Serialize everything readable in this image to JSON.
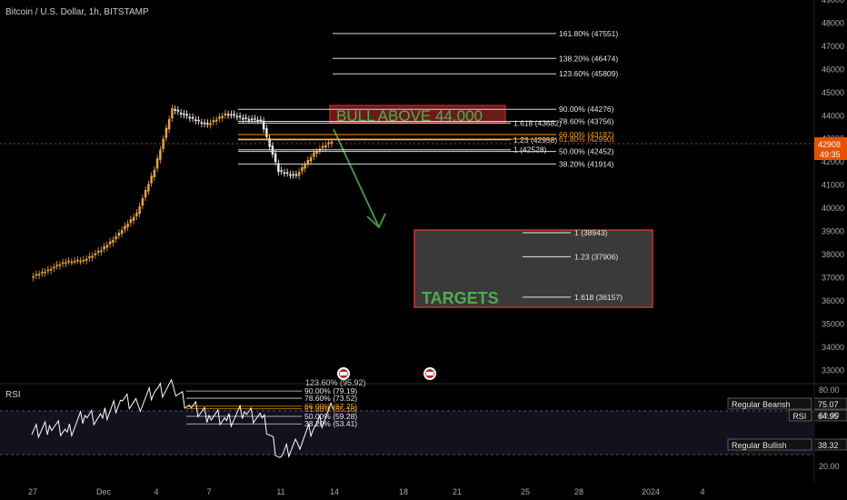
{
  "header": {
    "symbol_title": "Bitcoin / U.S. Dollar, 1h, BITSTAMP"
  },
  "colors": {
    "background": "#000000",
    "candle": "#f0a830",
    "candle_alt": "#ffffff",
    "fib_line": "#d8d8d8",
    "fib_orange": "#f39c12",
    "bull_text": "#4caf50",
    "bull_box": "#b71c1c",
    "arrow": "#43a047",
    "targets_box": "#3a3a3a",
    "targets_border": "#d32f2f",
    "rsi_line": "#ffffff",
    "rsi_band": "#1a1a2e",
    "price_tag": "#e65100"
  },
  "chart_data": [
    {
      "type": "candlestick",
      "title": "Bitcoin / U.S. Dollar, 1h, BITSTAMP",
      "ylim": [
        32500,
        49000
      ],
      "y_ticks": [
        33000,
        34000,
        35000,
        36000,
        37000,
        38000,
        39000,
        40000,
        41000,
        42000,
        43000,
        44000,
        45000,
        46000,
        47000,
        48000,
        49000
      ],
      "x_ticks": [
        "27",
        "Dec",
        "4",
        "7",
        "11",
        "14",
        "18",
        "21",
        "25",
        "28",
        "2024",
        "4"
      ],
      "price_series": [
        {
          "x": "27",
          "y": 37000
        },
        {
          "x": "28",
          "y": 37350
        },
        {
          "x": "29",
          "y": 37700
        },
        {
          "x": "30",
          "y": 37750
        },
        {
          "x": "Dec",
          "y": 38200
        },
        {
          "x": "2",
          "y": 38900
        },
        {
          "x": "3",
          "y": 39800
        },
        {
          "x": "4",
          "y": 41700
        },
        {
          "x": "5",
          "y": 44300
        },
        {
          "x": "6",
          "y": 43900
        },
        {
          "x": "7",
          "y": 43600
        },
        {
          "x": "8",
          "y": 44100
        },
        {
          "x": "9",
          "y": 43900
        },
        {
          "x": "10",
          "y": 43800
        },
        {
          "x": "11",
          "y": 41600
        },
        {
          "x": "12",
          "y": 41400
        },
        {
          "x": "13",
          "y": 42400
        },
        {
          "x": "14",
          "y": 42908
        }
      ],
      "fib_levels": [
        {
          "label": "161.80% (47551)",
          "value": 47551
        },
        {
          "label": "138.20% (46474)",
          "value": 46474
        },
        {
          "label": "123.60% (45809)",
          "value": 45809
        },
        {
          "label": "90.00% (44276)",
          "value": 44276
        },
        {
          "label": "78.60% (43756)",
          "value": 43756
        },
        {
          "label": "1.618 (43682)",
          "value": 43682
        },
        {
          "label": "66.00% (43187)",
          "value": 43187,
          "color": "orange"
        },
        {
          "label": "1.23 (42958)",
          "value": 42958
        },
        {
          "label": "61.80% (42990)",
          "value": 42990,
          "color": "orange"
        },
        {
          "label": "50.00% (42452)",
          "value": 42452
        },
        {
          "label": "1 (42528)",
          "value": 42528
        },
        {
          "label": "38.20% (41914)",
          "value": 41914
        }
      ],
      "current_price": {
        "value": "42908",
        "countdown": "49:35"
      },
      "annotation_bull": "BULL ABOVE 44.000",
      "targets_box": {
        "label": "TARGETS",
        "levels": [
          {
            "label": "1 (38943)",
            "value": 38943
          },
          {
            "label": "1.23 (37906)",
            "value": 37906
          },
          {
            "label": "1.618 (36157)",
            "value": 36157
          }
        ]
      }
    },
    {
      "type": "line",
      "title": "RSI",
      "ylim": [
        15,
        85
      ],
      "y_ticks": [
        "80.00",
        "60.00",
        "20.00"
      ],
      "rsi_series": [
        {
          "x": "27",
          "y": 45
        },
        {
          "x": "28",
          "y": 52
        },
        {
          "x": "29",
          "y": 47
        },
        {
          "x": "30",
          "y": 60
        },
        {
          "x": "Dec",
          "y": 58
        },
        {
          "x": "2",
          "y": 72
        },
        {
          "x": "3",
          "y": 68
        },
        {
          "x": "4",
          "y": 80
        },
        {
          "x": "5",
          "y": 82
        },
        {
          "x": "6",
          "y": 66
        },
        {
          "x": "7",
          "y": 60
        },
        {
          "x": "8",
          "y": 56
        },
        {
          "x": "9",
          "y": 63
        },
        {
          "x": "10",
          "y": 58
        },
        {
          "x": "11",
          "y": 27
        },
        {
          "x": "12",
          "y": 38
        },
        {
          "x": "13",
          "y": 52
        },
        {
          "x": "14",
          "y": 64.95
        }
      ],
      "fib_levels": [
        {
          "label": "90.00% (79.19)",
          "value": 79.19
        },
        {
          "label": "78.60% (73.52)",
          "value": 73.52
        },
        {
          "label": "66.00% (67.25)",
          "value": 67.25,
          "color": "orange"
        },
        {
          "label": "61.80% (65.16)",
          "value": 65.16,
          "color": "orange"
        },
        {
          "label": "50.00% (59.28)",
          "value": 59.28
        },
        {
          "label": "38.20% (53.41)",
          "value": 53.41
        }
      ],
      "top_clipped_label": "123.60% (95.92)",
      "legend": [
        {
          "name": "Regular Bearish",
          "value": "75.07"
        },
        {
          "name": "RSI",
          "value": "64.95"
        },
        {
          "name": "Regular Bullish",
          "value": "38.32"
        }
      ]
    }
  ]
}
